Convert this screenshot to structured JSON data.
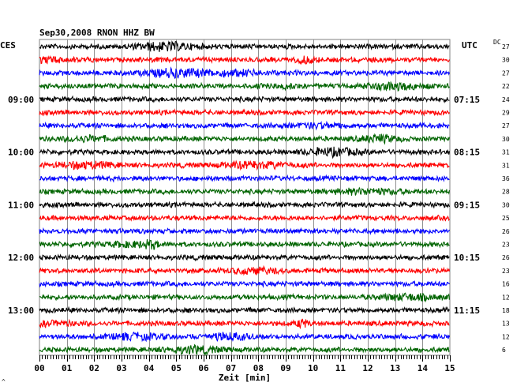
{
  "chart_data": {
    "type": "line",
    "title": "Sep30,2008   RNON HHZ BW",
    "left_timezone": "CES",
    "right_timezone": "UTC",
    "dc_label": "DC",
    "xlabel": "Zeit [min]",
    "x_ticks": [
      "00",
      "01",
      "02",
      "03",
      "04",
      "05",
      "06",
      "07",
      "08",
      "09",
      "10",
      "11",
      "12",
      "13",
      "14",
      "15"
    ],
    "xlim": [
      0,
      15
    ],
    "trace_interval_minutes": 15,
    "left_time_labels": [
      {
        "trace": 4,
        "label": "09:00"
      },
      {
        "trace": 8,
        "label": "10:00"
      },
      {
        "trace": 12,
        "label": "11:00"
      },
      {
        "trace": 16,
        "label": "12:00"
      },
      {
        "trace": 20,
        "label": "13:00"
      }
    ],
    "right_time_labels": [
      {
        "trace": 4,
        "label": "07:15"
      },
      {
        "trace": 8,
        "label": "08:15"
      },
      {
        "trace": 12,
        "label": "09:15"
      },
      {
        "trace": 16,
        "label": "10:15"
      },
      {
        "trace": 20,
        "label": "11:15"
      }
    ],
    "dc_offsets": [
      27,
      30,
      27,
      22,
      24,
      29,
      27,
      30,
      31,
      31,
      36,
      28,
      30,
      25,
      26,
      23,
      26,
      23,
      16,
      12,
      18,
      13,
      12,
      6
    ],
    "trace_colors": [
      "#000000",
      "#ff0000",
      "#0000ff",
      "#006400"
    ],
    "grid": true
  },
  "footer_mark": "^"
}
